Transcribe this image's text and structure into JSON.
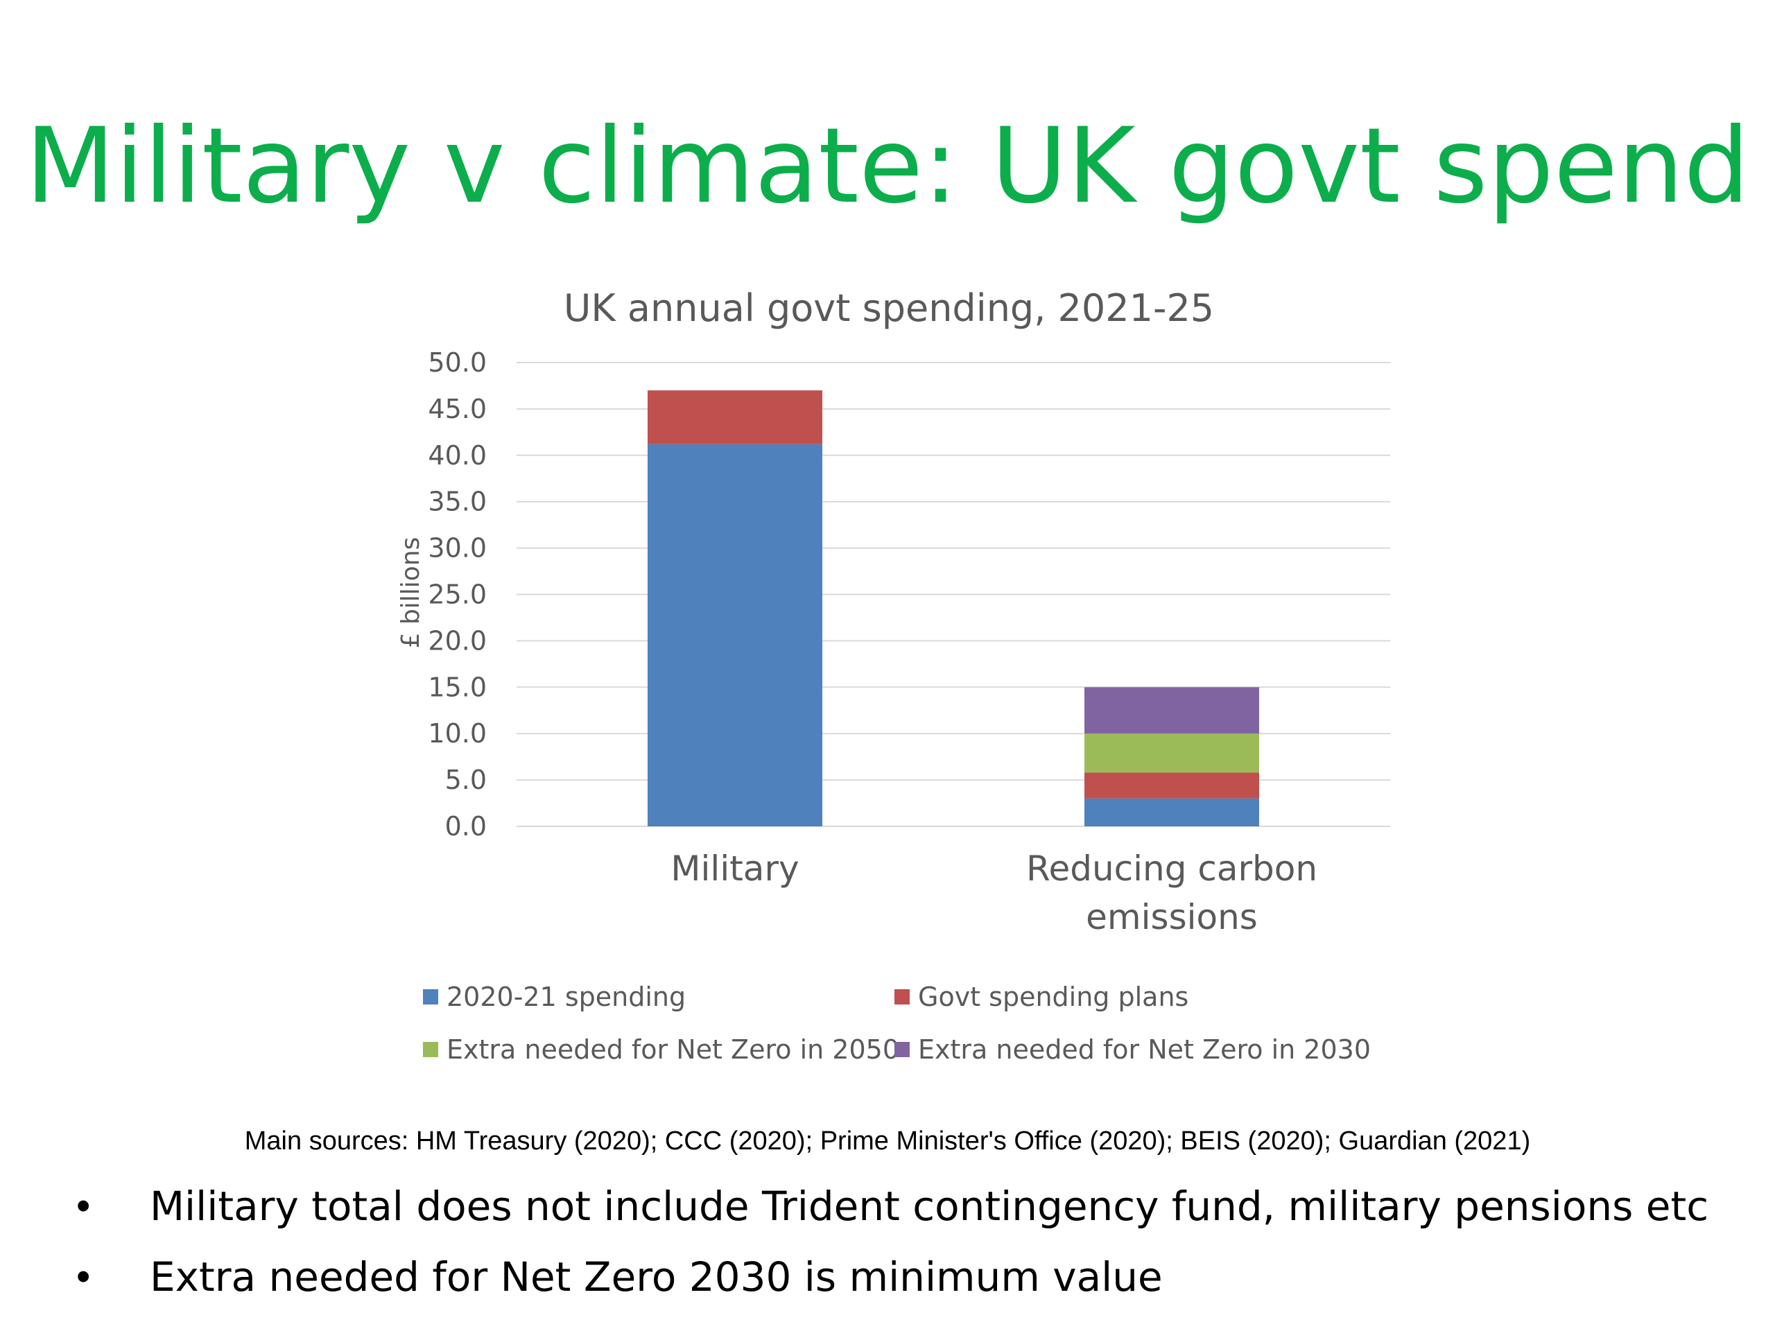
{
  "slide": {
    "title": "Military v climate: UK govt spend",
    "title_color": "#0cae4c",
    "sources": "Main sources: HM Treasury (2020); CCC (2020); Prime Minister's Office (2020); BEIS (2020); Guardian (2021)",
    "bullets": [
      "Military total does not include Trident contingency fund, military pensions etc",
      "Extra needed for Net Zero 2030 is minimum value"
    ]
  },
  "chart_data": {
    "type": "bar",
    "stacked": true,
    "title": "UK annual govt spending, 2021-25",
    "ylabel": "£ billions",
    "xlabel": "",
    "ylim": [
      0,
      50
    ],
    "ytick_step": 5,
    "ytick_labels": [
      "0.0",
      "5.0",
      "10.0",
      "15.0",
      "20.0",
      "25.0",
      "30.0",
      "35.0",
      "40.0",
      "45.0",
      "50.0"
    ],
    "grid": true,
    "legend_position": "bottom",
    "categories": [
      [
        "Military"
      ],
      [
        "Reducing carbon",
        "emissions"
      ]
    ],
    "series": [
      {
        "name": "2020-21 spending",
        "color": "#4f81bd",
        "values": [
          41.2,
          3.0
        ]
      },
      {
        "name": "Govt spending plans",
        "color": "#c0504d",
        "values": [
          5.8,
          2.8
        ]
      },
      {
        "name": "Extra needed for Net Zero in 2050",
        "color": "#9bbb59",
        "values": [
          0,
          4.2
        ]
      },
      {
        "name": "Extra needed for Net Zero in 2030",
        "color": "#8064a2",
        "values": [
          0,
          5.0
        ]
      }
    ]
  }
}
